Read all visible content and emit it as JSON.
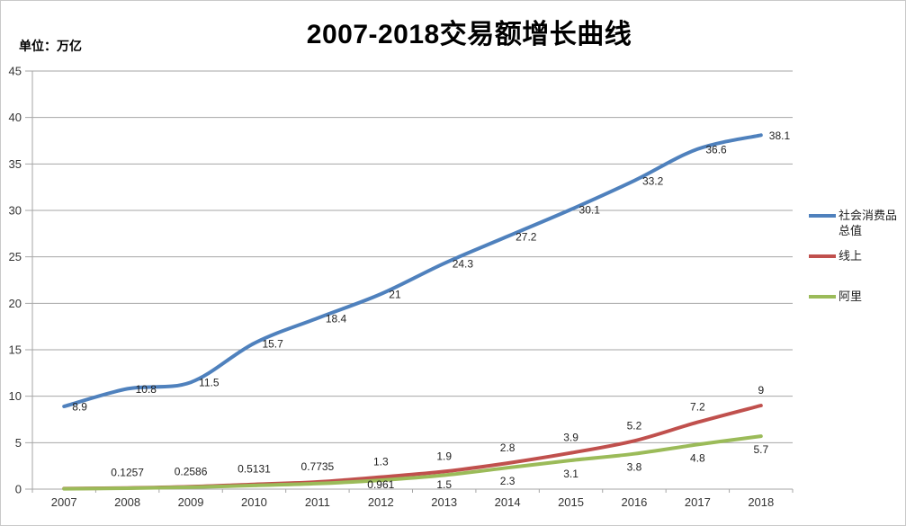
{
  "header": {
    "unit_label": "单位：万亿"
  },
  "chart_data": {
    "type": "line",
    "title": "2007-2018交易额增长曲线",
    "xlabel": "",
    "ylabel": "单位：万亿",
    "categories": [
      "2007",
      "2008",
      "2009",
      "2010",
      "2011",
      "2012",
      "2013",
      "2014",
      "2015",
      "2016",
      "2017",
      "2018"
    ],
    "y_ticks": [
      0,
      5,
      10,
      15,
      20,
      25,
      30,
      35,
      40,
      45
    ],
    "ylim": [
      0,
      45
    ],
    "grid": true,
    "legend_position": "right",
    "smooth": true,
    "colors": {
      "grid": "#a6a6a6",
      "axis_text": "#333333",
      "label_text": "#1f1f1f",
      "border": "#c9c9c9"
    },
    "series": [
      {
        "name": "社会消费品总值",
        "color": "#4F81BD",
        "label_position": "right",
        "values": [
          8.9,
          10.8,
          11.5,
          15.7,
          18.4,
          21,
          24.3,
          27.2,
          30.1,
          33.2,
          36.6,
          38.1
        ],
        "labels": [
          "8.9",
          "10.8",
          "11.5",
          "15.7",
          "18.4",
          "21",
          "24.3",
          "27.2",
          "30.1",
          "33.2",
          "36.6",
          "38.1"
        ]
      },
      {
        "name": "线上",
        "color": "#C0504D",
        "label_position": "above",
        "values": [
          0.06,
          0.1257,
          0.2586,
          0.5131,
          0.7735,
          1.3,
          1.9,
          2.8,
          3.9,
          5.2,
          7.2,
          9
        ],
        "labels": [
          "",
          "0.1257",
          "0.2586",
          "0.5131",
          "0.7735",
          "1.3",
          "1.9",
          "2.8",
          "3.9",
          "5.2",
          "7.2",
          "9"
        ]
      },
      {
        "name": "阿里",
        "color": "#9BBB59",
        "label_position": "below",
        "values": [
          0.04,
          0.1,
          0.2,
          0.4,
          0.6,
          0.961,
          1.5,
          2.3,
          3.1,
          3.8,
          4.8,
          5.7
        ],
        "labels": [
          "",
          "",
          "",
          "",
          "",
          "0.961",
          "1.5",
          "2.3",
          "3.1",
          "3.8",
          "4.8",
          "5.7"
        ]
      }
    ]
  }
}
